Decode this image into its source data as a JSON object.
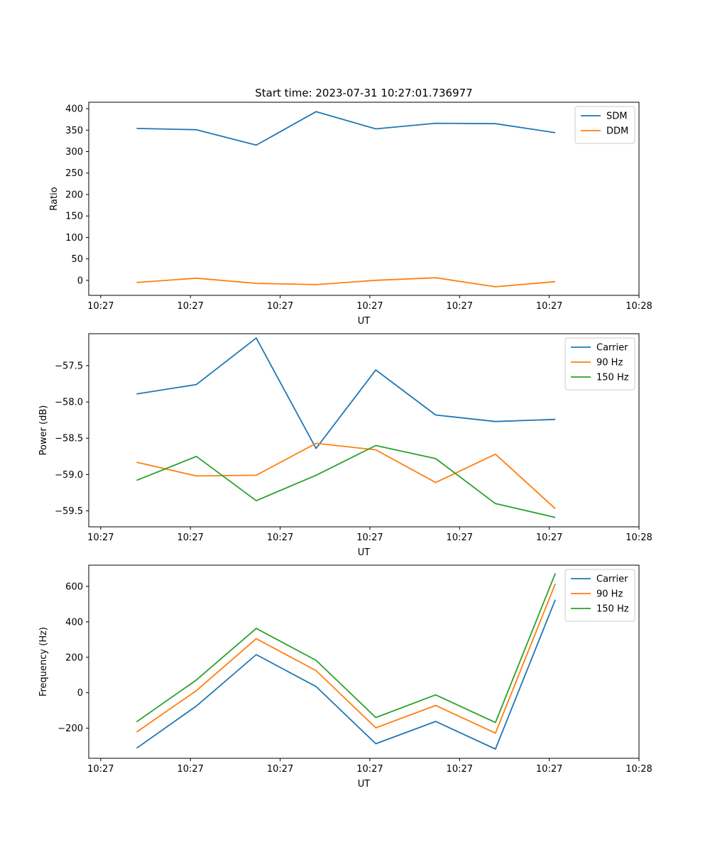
{
  "title": "Start time: 2023-07-31 10:27:01.736977",
  "colors": {
    "blue": "#1f77b4",
    "orange": "#ff7f0e",
    "green": "#2ca02c"
  },
  "chart_data": [
    {
      "type": "line",
      "title": "Start time: 2023-07-31 10:27:01.736977",
      "xlabel": "UT",
      "ylabel": "Ratio",
      "x": [
        1,
        2,
        3,
        4,
        5,
        6,
        7,
        8
      ],
      "xlim": [
        0.2,
        9.4
      ],
      "x_ticks": [
        0.4,
        1.9,
        3.4,
        4.9,
        6.4,
        7.9,
        9.4
      ],
      "x_tick_labels": [
        "10:27",
        "10:27",
        "10:27",
        "10:27",
        "10:27",
        "10:27",
        "10:28"
      ],
      "ylim": [
        -35,
        415
      ],
      "y_ticks": [
        0,
        50,
        100,
        150,
        200,
        250,
        300,
        350,
        400
      ],
      "y_tick_labels": [
        "0",
        "50",
        "100",
        "150",
        "200",
        "250",
        "300",
        "350",
        "400"
      ],
      "legend_position": "top-right",
      "series": [
        {
          "name": "SDM",
          "color": "#1f77b4",
          "values": [
            354,
            351,
            315,
            393,
            353,
            366,
            365,
            344
          ]
        },
        {
          "name": "DDM",
          "color": "#ff7f0e",
          "values": [
            -5,
            5,
            -7,
            -10,
            0,
            6,
            -15,
            -3
          ]
        }
      ]
    },
    {
      "type": "line",
      "xlabel": "UT",
      "ylabel": "Power (dB)",
      "x": [
        1,
        2,
        3,
        4,
        5,
        6,
        7,
        8
      ],
      "xlim": [
        0.2,
        9.4
      ],
      "x_ticks": [
        0.4,
        1.9,
        3.4,
        4.9,
        6.4,
        7.9,
        9.4
      ],
      "x_tick_labels": [
        "10:27",
        "10:27",
        "10:27",
        "10:27",
        "10:27",
        "10:27",
        "10:28"
      ],
      "ylim": [
        -59.72,
        -57.06
      ],
      "y_ticks": [
        -59.5,
        -59.0,
        -58.5,
        -58.0,
        -57.5
      ],
      "y_tick_labels": [
        "−59.5",
        "−59.0",
        "−58.5",
        "−58.0",
        "−57.5"
      ],
      "legend_position": "top-right",
      "series": [
        {
          "name": "Carrier",
          "color": "#1f77b4",
          "values": [
            -57.89,
            -57.76,
            -57.12,
            -58.64,
            -57.56,
            -58.18,
            -58.27,
            -58.24
          ]
        },
        {
          "name": "90 Hz",
          "color": "#ff7f0e",
          "values": [
            -58.83,
            -59.02,
            -59.01,
            -58.57,
            -58.66,
            -59.11,
            -58.72,
            -59.47
          ]
        },
        {
          "name": "150 Hz",
          "color": "#2ca02c",
          "values": [
            -59.08,
            -58.75,
            -59.36,
            -59.01,
            -58.6,
            -58.78,
            -59.4,
            -59.59
          ]
        }
      ]
    },
    {
      "type": "line",
      "xlabel": "UT",
      "ylabel": "Frequency (Hz)",
      "x": [
        1,
        2,
        3,
        4,
        5,
        6,
        7,
        8
      ],
      "xlim": [
        0.2,
        9.4
      ],
      "x_ticks": [
        0.4,
        1.9,
        3.4,
        4.9,
        6.4,
        7.9,
        9.4
      ],
      "x_tick_labels": [
        "10:27",
        "10:27",
        "10:27",
        "10:27",
        "10:27",
        "10:27",
        "10:28"
      ],
      "ylim": [
        -370,
        720
      ],
      "y_ticks": [
        -200,
        0,
        200,
        400,
        600
      ],
      "y_tick_labels": [
        "−200",
        "0",
        "200",
        "400",
        "600"
      ],
      "legend_position": "top-right",
      "series": [
        {
          "name": "Carrier",
          "color": "#1f77b4",
          "values": [
            -313,
            -75,
            215,
            35,
            -288,
            -162,
            -318,
            525
          ]
        },
        {
          "name": "90 Hz",
          "color": "#ff7f0e",
          "values": [
            -222,
            12,
            305,
            125,
            -198,
            -72,
            -228,
            615
          ]
        },
        {
          "name": "150 Hz",
          "color": "#2ca02c",
          "values": [
            -164,
            72,
            363,
            183,
            -140,
            -12,
            -168,
            673
          ]
        }
      ]
    }
  ]
}
